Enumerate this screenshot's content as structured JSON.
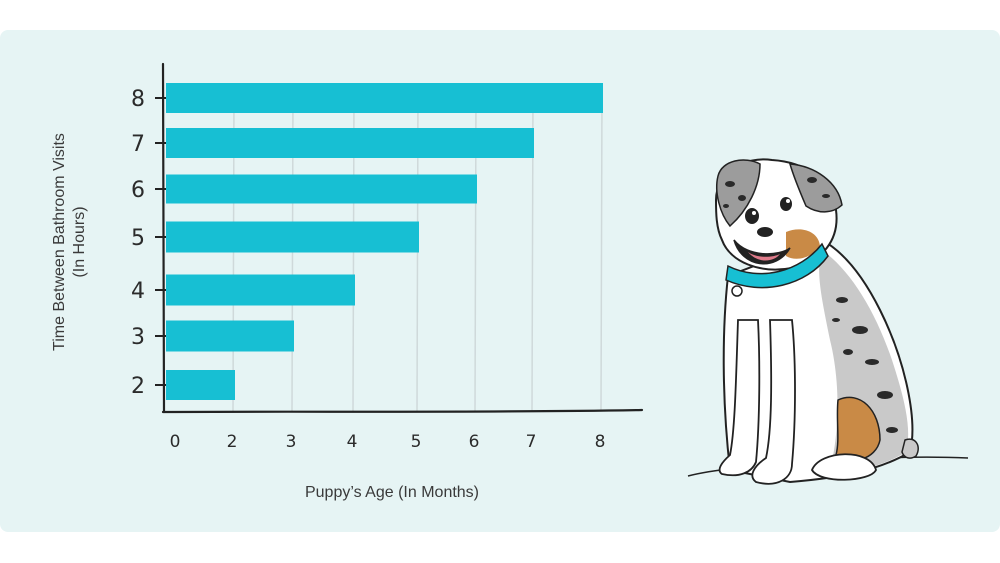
{
  "chart_data": {
    "type": "bar",
    "orientation": "horizontal",
    "ylabel_line1": "Time Between Bathroom Visits",
    "ylabel_line2": "(In Hours)",
    "xlabel": "Puppy’s Age (In Months)",
    "x_ticks": [
      "0",
      "2",
      "3",
      "4",
      "5",
      "6",
      "7",
      "8"
    ],
    "categories": [
      "8",
      "7",
      "6",
      "5",
      "4",
      "3",
      "2"
    ],
    "values": [
      8,
      7,
      6,
      5,
      4,
      3,
      2
    ],
    "bar_color": "#17bfd3",
    "grid": true
  }
}
